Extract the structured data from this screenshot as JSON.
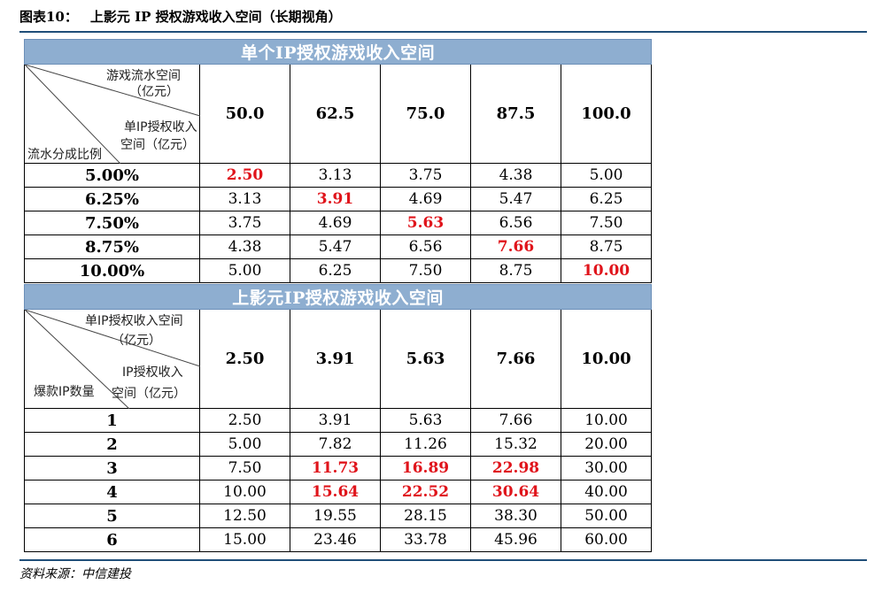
{
  "figure": {
    "label": "图表10：",
    "title": "上影元 IP 授权游戏收入空间（长期视角）"
  },
  "table1": {
    "band_title": "单个IP授权游戏收入空间",
    "corner": {
      "col_header_l1": "游戏流水空间",
      "col_header_l2": "（亿元）",
      "cell_header_l1": "单IP授权收入",
      "cell_header_l2": "空间（亿元）",
      "row_header": "流水分成比例"
    },
    "columns": [
      "50.0",
      "62.5",
      "75.0",
      "87.5",
      "100.0"
    ],
    "rows": [
      {
        "label": "5.00%",
        "values": [
          "2.50",
          "3.13",
          "3.75",
          "4.38",
          "5.00"
        ],
        "highlight": [
          true,
          false,
          false,
          false,
          false
        ]
      },
      {
        "label": "6.25%",
        "values": [
          "3.13",
          "3.91",
          "4.69",
          "5.47",
          "6.25"
        ],
        "highlight": [
          false,
          true,
          false,
          false,
          false
        ]
      },
      {
        "label": "7.50%",
        "values": [
          "3.75",
          "4.69",
          "5.63",
          "6.56",
          "7.50"
        ],
        "highlight": [
          false,
          false,
          true,
          false,
          false
        ]
      },
      {
        "label": "8.75%",
        "values": [
          "4.38",
          "5.47",
          "6.56",
          "7.66",
          "8.75"
        ],
        "highlight": [
          false,
          false,
          false,
          true,
          false
        ]
      },
      {
        "label": "10.00%",
        "values": [
          "5.00",
          "6.25",
          "7.50",
          "8.75",
          "10.00"
        ],
        "highlight": [
          false,
          false,
          false,
          false,
          true
        ]
      }
    ]
  },
  "table2": {
    "band_title": "上影元IP授权游戏收入空间",
    "corner": {
      "col_header_l1": "单IP授权收入空间",
      "col_header_l2": "（亿元）",
      "cell_header_l1": "IP授权收入",
      "cell_header_l2": "空间（亿元）",
      "row_header": "爆款IP数量"
    },
    "columns": [
      "2.50",
      "3.91",
      "5.63",
      "7.66",
      "10.00"
    ],
    "rows": [
      {
        "label": "1",
        "values": [
          "2.50",
          "3.91",
          "5.63",
          "7.66",
          "10.00"
        ],
        "highlight": [
          false,
          false,
          false,
          false,
          false
        ]
      },
      {
        "label": "2",
        "values": [
          "5.00",
          "7.82",
          "11.26",
          "15.32",
          "20.00"
        ],
        "highlight": [
          false,
          false,
          false,
          false,
          false
        ]
      },
      {
        "label": "3",
        "values": [
          "7.50",
          "11.73",
          "16.89",
          "22.98",
          "30.00"
        ],
        "highlight": [
          false,
          true,
          true,
          true,
          false
        ]
      },
      {
        "label": "4",
        "values": [
          "10.00",
          "15.64",
          "22.52",
          "30.64",
          "40.00"
        ],
        "highlight": [
          false,
          true,
          true,
          true,
          false
        ]
      },
      {
        "label": "5",
        "values": [
          "12.50",
          "19.55",
          "28.15",
          "38.30",
          "50.00"
        ],
        "highlight": [
          false,
          false,
          false,
          false,
          false
        ]
      },
      {
        "label": "6",
        "values": [
          "15.00",
          "23.46",
          "33.78",
          "45.96",
          "60.00"
        ],
        "highlight": [
          false,
          false,
          false,
          false,
          false
        ]
      }
    ]
  },
  "source": "资料来源：中信建投",
  "colors": {
    "band_bg": "#8eaed0",
    "highlight": "#e0141b",
    "rule": "#1f4e79"
  }
}
